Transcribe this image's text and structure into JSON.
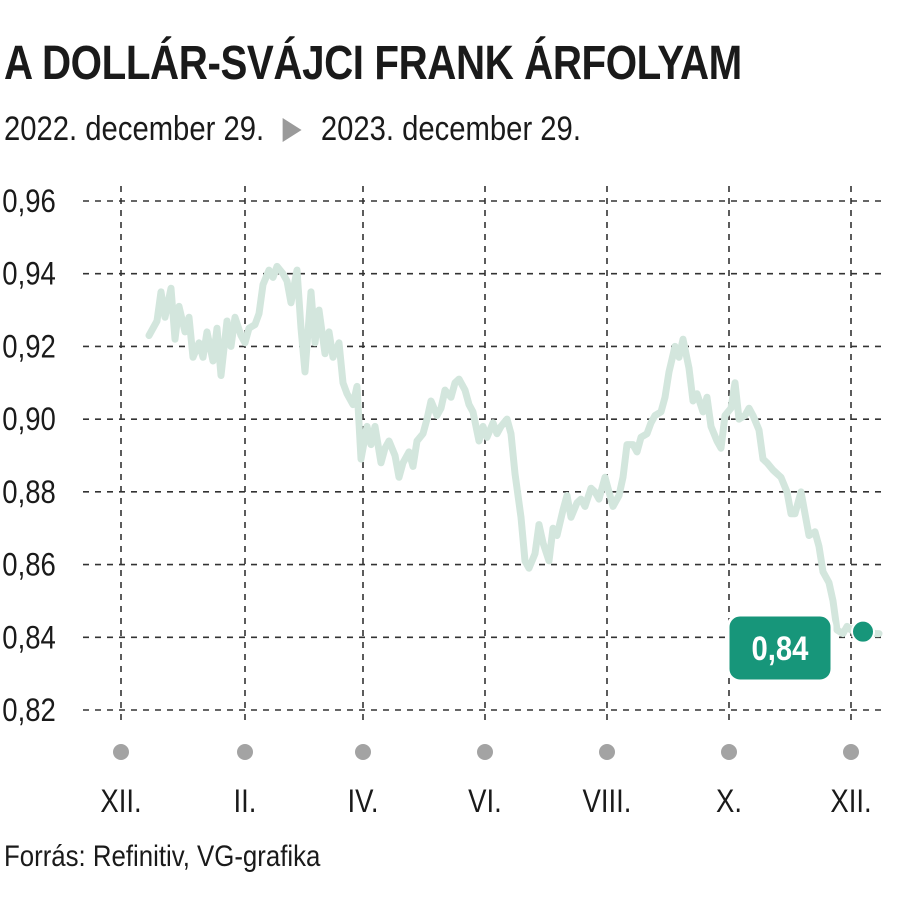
{
  "chart_data": {
    "type": "line",
    "title": "A DOLLÁR-SVÁJCI FRANK ÁRFOLYAM",
    "subtitle_from": "2022. december 29.",
    "subtitle_to": "2023. december 29.",
    "source": "Forrás: Refinitiv, VG-grafika",
    "ylim": [
      0.82,
      0.96
    ],
    "y_ticks": [
      "0,96",
      "0,94",
      "0,92",
      "0,90",
      "0,88",
      "0,86",
      "0,84",
      "0,82"
    ],
    "y_tick_values": [
      0.96,
      0.94,
      0.92,
      0.9,
      0.88,
      0.86,
      0.84,
      0.82
    ],
    "x_range": [
      "2022-12-01",
      "2024-01-01"
    ],
    "x_ticks": [
      {
        "label": "XII.",
        "date": "2022-12-15"
      },
      {
        "label": "II.",
        "date": "2023-02-15"
      },
      {
        "label": "IV.",
        "date": "2023-04-15"
      },
      {
        "label": "VI.",
        "date": "2023-06-15"
      },
      {
        "label": "VIII.",
        "date": "2023-08-15"
      },
      {
        "label": "X.",
        "date": "2023-10-15"
      },
      {
        "label": "XII.",
        "date": "2023-12-15"
      }
    ],
    "grid": true,
    "line_color": "#d3e6dd",
    "accent_color": "#17967a",
    "last_value_label": "0,84",
    "last_value": 0.841,
    "series": [
      {
        "x": [
          "2022-12-29",
          "2023-01-02",
          "2023-01-04",
          "2023-01-06",
          "2023-01-09",
          "2023-01-11",
          "2023-01-13",
          "2023-01-16",
          "2023-01-18",
          "2023-01-20",
          "2023-01-23",
          "2023-01-25",
          "2023-01-27",
          "2023-01-30",
          "2023-02-01",
          "2023-02-03",
          "2023-02-06",
          "2023-02-08",
          "2023-02-10",
          "2023-02-13",
          "2023-02-15",
          "2023-02-17",
          "2023-02-20",
          "2023-02-22",
          "2023-02-24",
          "2023-02-27",
          "2023-03-01",
          "2023-03-03",
          "2023-03-06",
          "2023-03-08",
          "2023-03-10",
          "2023-03-13",
          "2023-03-15",
          "2023-03-17",
          "2023-03-20",
          "2023-03-22",
          "2023-03-24",
          "2023-03-27",
          "2023-03-29",
          "2023-03-31",
          "2023-04-03",
          "2023-04-05",
          "2023-04-07",
          "2023-04-10",
          "2023-04-12",
          "2023-04-14",
          "2023-04-17",
          "2023-04-19",
          "2023-04-21",
          "2023-04-24",
          "2023-04-26",
          "2023-04-28",
          "2023-05-01",
          "2023-05-03",
          "2023-05-05",
          "2023-05-08",
          "2023-05-10",
          "2023-05-12",
          "2023-05-15",
          "2023-05-17",
          "2023-05-19",
          "2023-05-22",
          "2023-05-24",
          "2023-05-26",
          "2023-05-29",
          "2023-05-31",
          "2023-06-02",
          "2023-06-05",
          "2023-06-07",
          "2023-06-09",
          "2023-06-12",
          "2023-06-14",
          "2023-06-16",
          "2023-06-19",
          "2023-06-21",
          "2023-06-23",
          "2023-06-26",
          "2023-06-28",
          "2023-06-30",
          "2023-07-03",
          "2023-07-05",
          "2023-07-07",
          "2023-07-10",
          "2023-07-12",
          "2023-07-14",
          "2023-07-17",
          "2023-07-19",
          "2023-07-21",
          "2023-07-24",
          "2023-07-26",
          "2023-07-28",
          "2023-07-31",
          "2023-08-02",
          "2023-08-04",
          "2023-08-07",
          "2023-08-09",
          "2023-08-11",
          "2023-08-14",
          "2023-08-16",
          "2023-08-18",
          "2023-08-21",
          "2023-08-23",
          "2023-08-25",
          "2023-08-28",
          "2023-08-30",
          "2023-09-01",
          "2023-09-04",
          "2023-09-06",
          "2023-09-08",
          "2023-09-11",
          "2023-09-13",
          "2023-09-15",
          "2023-09-18",
          "2023-09-20",
          "2023-09-22",
          "2023-09-25",
          "2023-09-27",
          "2023-09-29",
          "2023-10-02",
          "2023-10-04",
          "2023-10-06",
          "2023-10-09",
          "2023-10-11",
          "2023-10-13",
          "2023-10-16",
          "2023-10-18",
          "2023-10-20",
          "2023-10-23",
          "2023-10-25",
          "2023-10-27",
          "2023-10-30",
          "2023-11-01",
          "2023-11-03",
          "2023-11-06",
          "2023-11-08",
          "2023-11-10",
          "2023-11-13",
          "2023-11-15",
          "2023-11-17",
          "2023-11-20",
          "2023-11-22",
          "2023-11-24",
          "2023-11-27",
          "2023-11-29",
          "2023-12-01",
          "2023-12-04",
          "2023-12-06",
          "2023-12-08",
          "2023-12-11",
          "2023-12-13",
          "2023-12-15",
          "2023-12-18",
          "2023-12-20",
          "2023-12-22",
          "2023-12-27",
          "2023-12-29"
        ],
        "y": [
          0.923,
          0.927,
          0.935,
          0.928,
          0.936,
          0.922,
          0.931,
          0.924,
          0.928,
          0.917,
          0.921,
          0.917,
          0.924,
          0.916,
          0.925,
          0.912,
          0.927,
          0.92,
          0.928,
          0.923,
          0.921,
          0.925,
          0.926,
          0.929,
          0.937,
          0.941,
          0.939,
          0.942,
          0.94,
          0.938,
          0.932,
          0.941,
          0.925,
          0.913,
          0.935,
          0.921,
          0.93,
          0.918,
          0.924,
          0.917,
          0.921,
          0.91,
          0.907,
          0.904,
          0.909,
          0.889,
          0.898,
          0.893,
          0.898,
          0.888,
          0.892,
          0.894,
          0.89,
          0.884,
          0.888,
          0.891,
          0.887,
          0.894,
          0.896,
          0.9,
          0.905,
          0.901,
          0.903,
          0.908,
          0.906,
          0.91,
          0.911,
          0.908,
          0.904,
          0.902,
          0.894,
          0.898,
          0.895,
          0.899,
          0.896,
          0.898,
          0.9,
          0.896,
          0.885,
          0.873,
          0.861,
          0.859,
          0.863,
          0.871,
          0.866,
          0.861,
          0.87,
          0.868,
          0.875,
          0.879,
          0.873,
          0.877,
          0.878,
          0.876,
          0.881,
          0.88,
          0.878,
          0.884,
          0.88,
          0.876,
          0.879,
          0.884,
          0.893,
          0.893,
          0.891,
          0.895,
          0.896,
          0.899,
          0.901,
          0.902,
          0.906,
          0.913,
          0.92,
          0.917,
          0.922,
          0.914,
          0.905,
          0.907,
          0.902,
          0.906,
          0.898,
          0.894,
          0.892,
          0.901,
          0.903,
          0.91,
          0.9,
          0.901,
          0.903,
          0.901,
          0.897,
          0.889,
          0.888,
          0.886,
          0.885,
          0.884,
          0.88,
          0.874,
          0.874,
          0.88,
          0.874,
          0.868,
          0.869,
          0.865,
          0.858,
          0.855,
          0.85,
          0.842,
          0.841,
          0.843,
          0.842,
          0.843,
          0.843,
          0.842,
          0.841,
          0.841
        ]
      }
    ]
  }
}
